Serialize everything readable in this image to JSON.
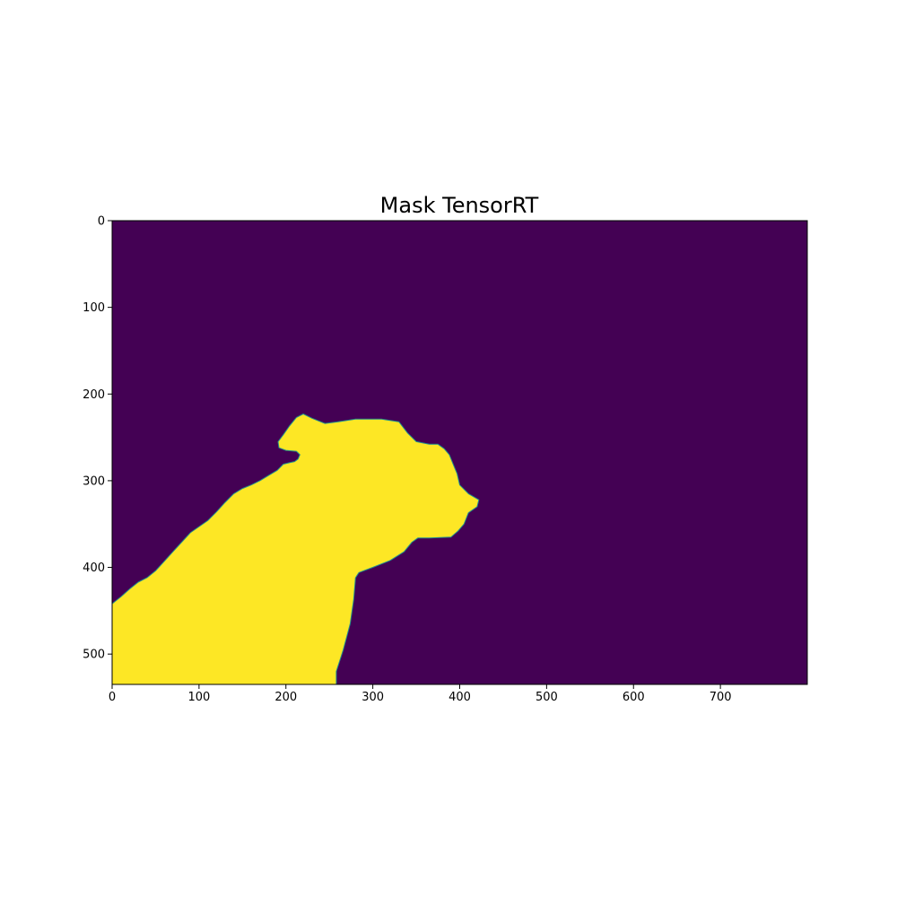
{
  "chart_data": {
    "type": "heatmap",
    "title": "Mask TensorRT",
    "xlabel": "",
    "ylabel": "",
    "xlim": [
      0,
      800
    ],
    "ylim": [
      535,
      0
    ],
    "x_ticks": [
      0,
      100,
      200,
      300,
      400,
      500,
      600,
      700
    ],
    "y_ticks": [
      0,
      100,
      200,
      300,
      400,
      500
    ],
    "grid": false,
    "colormap": "viridis",
    "colors": {
      "background": "#440154",
      "mask": "#fde725",
      "edge": "#21918c"
    },
    "mask_region": {
      "value": 1,
      "outline_xy": [
        [
          0,
          442
        ],
        [
          10,
          434
        ],
        [
          20,
          425
        ],
        [
          30,
          417
        ],
        [
          40,
          412
        ],
        [
          50,
          404
        ],
        [
          60,
          393
        ],
        [
          70,
          382
        ],
        [
          80,
          371
        ],
        [
          90,
          360
        ],
        [
          100,
          353
        ],
        [
          110,
          346
        ],
        [
          120,
          336
        ],
        [
          130,
          325
        ],
        [
          140,
          315
        ],
        [
          150,
          309
        ],
        [
          160,
          305
        ],
        [
          170,
          300
        ],
        [
          180,
          294
        ],
        [
          190,
          288
        ],
        [
          197,
          281
        ],
        [
          205,
          279
        ],
        [
          210,
          278
        ],
        [
          214,
          275
        ],
        [
          216,
          270
        ],
        [
          212,
          266
        ],
        [
          200,
          265
        ],
        [
          192,
          262
        ],
        [
          191,
          255
        ],
        [
          197,
          247
        ],
        [
          204,
          237
        ],
        [
          212,
          227
        ],
        [
          220,
          223
        ],
        [
          230,
          228
        ],
        [
          245,
          234
        ],
        [
          260,
          232
        ],
        [
          280,
          229
        ],
        [
          310,
          229
        ],
        [
          330,
          232
        ],
        [
          340,
          245
        ],
        [
          350,
          255
        ],
        [
          365,
          258
        ],
        [
          375,
          258
        ],
        [
          382,
          263
        ],
        [
          388,
          270
        ],
        [
          392,
          280
        ],
        [
          397,
          292
        ],
        [
          400,
          305
        ],
        [
          410,
          315
        ],
        [
          422,
          322
        ],
        [
          420,
          330
        ],
        [
          410,
          337
        ],
        [
          405,
          350
        ],
        [
          398,
          358
        ],
        [
          390,
          365
        ],
        [
          365,
          366
        ],
        [
          352,
          366
        ],
        [
          345,
          371
        ],
        [
          336,
          382
        ],
        [
          320,
          392
        ],
        [
          300,
          400
        ],
        [
          284,
          406
        ],
        [
          280,
          412
        ],
        [
          278,
          437
        ],
        [
          274,
          465
        ],
        [
          266,
          495
        ],
        [
          258,
          520
        ],
        [
          258,
          535
        ],
        [
          0,
          535
        ]
      ]
    }
  }
}
